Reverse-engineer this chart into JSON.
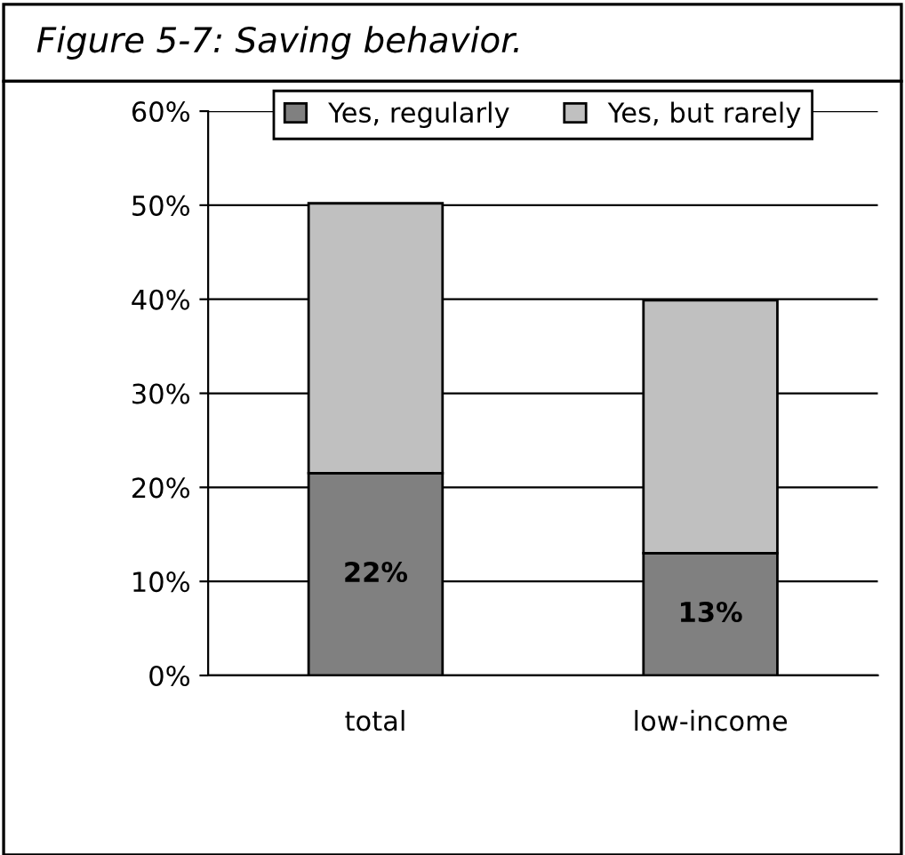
{
  "chart_data": {
    "type": "bar",
    "title": "Figure 5-7: Saving behavior.",
    "categories": [
      "total",
      "low-income"
    ],
    "stacked": true,
    "series": [
      {
        "name": "Yes, regularly",
        "color": "#808080",
        "values": [
          21.5,
          13
        ],
        "value_labels": [
          "22%",
          "13%"
        ]
      },
      {
        "name": "Yes, but rarely",
        "color": "#c0c0c0",
        "values": [
          28.7,
          26.9
        ]
      }
    ],
    "ylim": [
      0,
      60
    ],
    "yticks": [
      {
        "value": 0,
        "label": "0%"
      },
      {
        "value": 10,
        "label": "10%"
      },
      {
        "value": 20,
        "label": "20%"
      },
      {
        "value": 30,
        "label": "30%"
      },
      {
        "value": 40,
        "label": "40%"
      },
      {
        "value": 50,
        "label": "50%"
      },
      {
        "value": 60,
        "label": "60%"
      }
    ],
    "grid": "y",
    "legend": "top"
  }
}
